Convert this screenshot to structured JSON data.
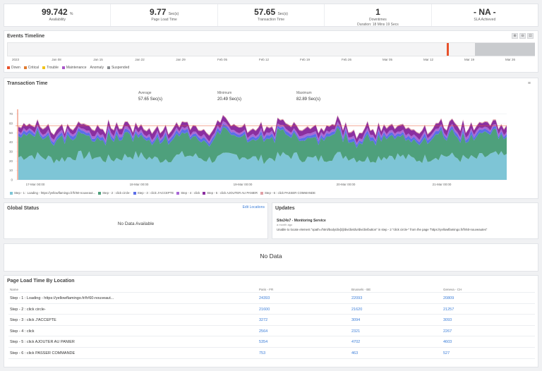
{
  "kpis": [
    {
      "value": "99.742",
      "unit": "%",
      "label": "Availability",
      "sub": ""
    },
    {
      "value": "9.77",
      "unit": "Sec(s)",
      "label": "Page Load Time",
      "sub": ""
    },
    {
      "value": "57.65",
      "unit": "Sec(s)",
      "label": "Transaction Time",
      "sub": ""
    },
    {
      "value": "1",
      "unit": "",
      "label": "Downtimes",
      "sub": "Duration: 18 Mins 19 Secs"
    },
    {
      "value": "- NA -",
      "unit": "",
      "label": "SLA Achieved",
      "sub": ""
    }
  ],
  "events": {
    "title": "Events Timeline",
    "zoom_buttons": [
      "⊕",
      "⊖",
      "⊡"
    ],
    "axis": [
      "2023",
      "Jan 08",
      "Jan 15",
      "Jan 22",
      "Jan 29",
      "Feb 05",
      "Feb 12",
      "Feb 19",
      "Feb 26",
      "Mar 05",
      "Mar 12",
      "Mar 19",
      "Mar 26"
    ],
    "legend": [
      {
        "label": "Down",
        "color": "#e8522b"
      },
      {
        "label": "Critical",
        "color": "#e07a2e"
      },
      {
        "label": "Trouble",
        "color": "#f2c318"
      },
      {
        "label": "Maintenance",
        "color": "#a855c8"
      },
      {
        "label": "Anomaly",
        "color": "#ffffff"
      },
      {
        "label": "Suspended",
        "color": "#8a8d91"
      }
    ]
  },
  "transaction": {
    "title": "Transaction Time",
    "menu_icon": "≡",
    "stats": [
      {
        "label": "Average",
        "value": "57.65 Sec(s)"
      },
      {
        "label": "Minimum",
        "value": "20.49 Sec(s)"
      },
      {
        "label": "Maximum",
        "value": "82.89 Sec(s)"
      }
    ]
  },
  "chart_data": {
    "type": "area",
    "stacked": true,
    "y_ticks": [
      "0",
      "10",
      "20",
      "30",
      "40",
      "50",
      "60",
      "70"
    ],
    "ylim": [
      0,
      75
    ],
    "x_ticks": [
      "17-Mar 00:00",
      "18-Mar 00:00",
      "19-Mar 00:00",
      "20-Mar 00:00",
      "21-Mar 00:00"
    ],
    "threshold": 57.65,
    "series": [
      {
        "name": "Step - 1 : Loading - https://yellowflamingo.fr/fr/60-nouveaut...",
        "color": "#7ec5d6",
        "avg": 24
      },
      {
        "name": "Step - 2 : click circle-",
        "color": "#4ea07c",
        "avg": 21.6
      },
      {
        "name": "Step - 3 : click J'ACCEPTE",
        "color": "#5b6ee8",
        "avg": 3.2
      },
      {
        "name": "Step - 4 : click",
        "color": "#a968d6",
        "avg": 2.5
      },
      {
        "name": "Step - 5 : click AJOUTER AU PANIER",
        "color": "#8b2fa0",
        "avg": 5.3
      },
      {
        "name": "Step - 6 : click PASSER COMMANDE",
        "color": "#e0a0a6",
        "avg": 0.8
      }
    ]
  },
  "global_status": {
    "title": "Global Status",
    "link": "Edit Locations",
    "empty": "No Data Available"
  },
  "updates": {
    "title": "Updates",
    "name": "Site24x7 - Monitoring Service",
    "time": "a month ago",
    "message": "Unable to locate element \"xpath=/html/body/div[3]/div/div/div/div/div/button\" in step - 2 \"click circle-\" from the page \"https://yellowflamingo.fr/fr/60-nouveautes\""
  },
  "no_data": "No Data",
  "page_load": {
    "title": "Page Load Time By Location",
    "headers": [
      "Name",
      "Paris - FR",
      "Brussels - BE",
      "Geneva - CH"
    ],
    "rows": [
      [
        "Step - 1 : Loading - https://yellowflamingo.fr/fr/60-nouveaut...",
        "24393",
        "22093",
        "20809"
      ],
      [
        "Step - 2 : click circle-",
        "21600",
        "21620",
        "21257"
      ],
      [
        "Step - 3 : click J'ACCEPTE",
        "3272",
        "3094",
        "3093"
      ],
      [
        "Step - 4 : click",
        "2564",
        "2321",
        "2267"
      ],
      [
        "Step - 5 : click AJOUTER AU PANIER",
        "5354",
        "4702",
        "4603"
      ],
      [
        "Step - 6 : click PASSER COMMANDE",
        "753",
        "463",
        "527"
      ]
    ]
  }
}
